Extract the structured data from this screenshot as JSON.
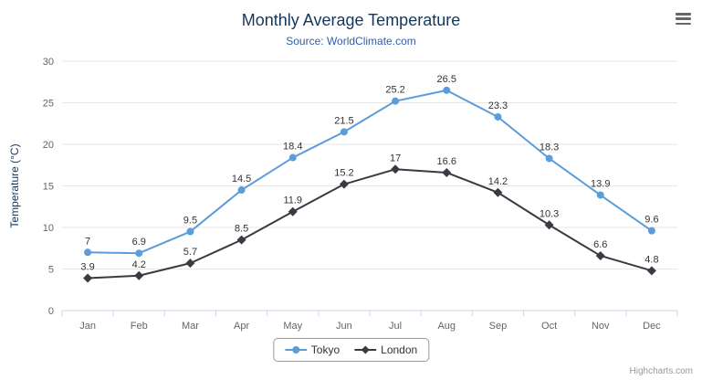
{
  "credits": "Highcharts.com",
  "icons": {
    "export_menu": "hamburger"
  },
  "chart_data": {
    "type": "line",
    "title": "Monthly Average Temperature",
    "subtitle": "Source: WorldClimate.com",
    "xlabel": "",
    "ylabel": "Temperature (°C)",
    "ylim": [
      0,
      30
    ],
    "ytick_step": 5,
    "grid": true,
    "legend_position": "bottom",
    "categories": [
      "Jan",
      "Feb",
      "Mar",
      "Apr",
      "May",
      "Jun",
      "Jul",
      "Aug",
      "Sep",
      "Oct",
      "Nov",
      "Dec"
    ],
    "series": [
      {
        "name": "Tokyo",
        "color": "#5b9cdb",
        "marker": "circle",
        "values": [
          7,
          6.9,
          9.5,
          14.5,
          18.4,
          21.5,
          25.2,
          26.5,
          23.3,
          18.3,
          13.9,
          9.6
        ]
      },
      {
        "name": "London",
        "color": "#3a3a42",
        "marker": "diamond",
        "values": [
          3.9,
          4.2,
          5.7,
          8.5,
          11.9,
          15.2,
          17,
          16.6,
          14.2,
          10.3,
          6.6,
          4.8
        ]
      }
    ],
    "palette": {
      "grid_line": "#e6e6e6",
      "axis_line": "#ccd6eb",
      "title": "#16365c",
      "subtitle": "#335cad",
      "tick_label": "#666666",
      "data_label": "#333333",
      "credits": "#999999"
    }
  }
}
